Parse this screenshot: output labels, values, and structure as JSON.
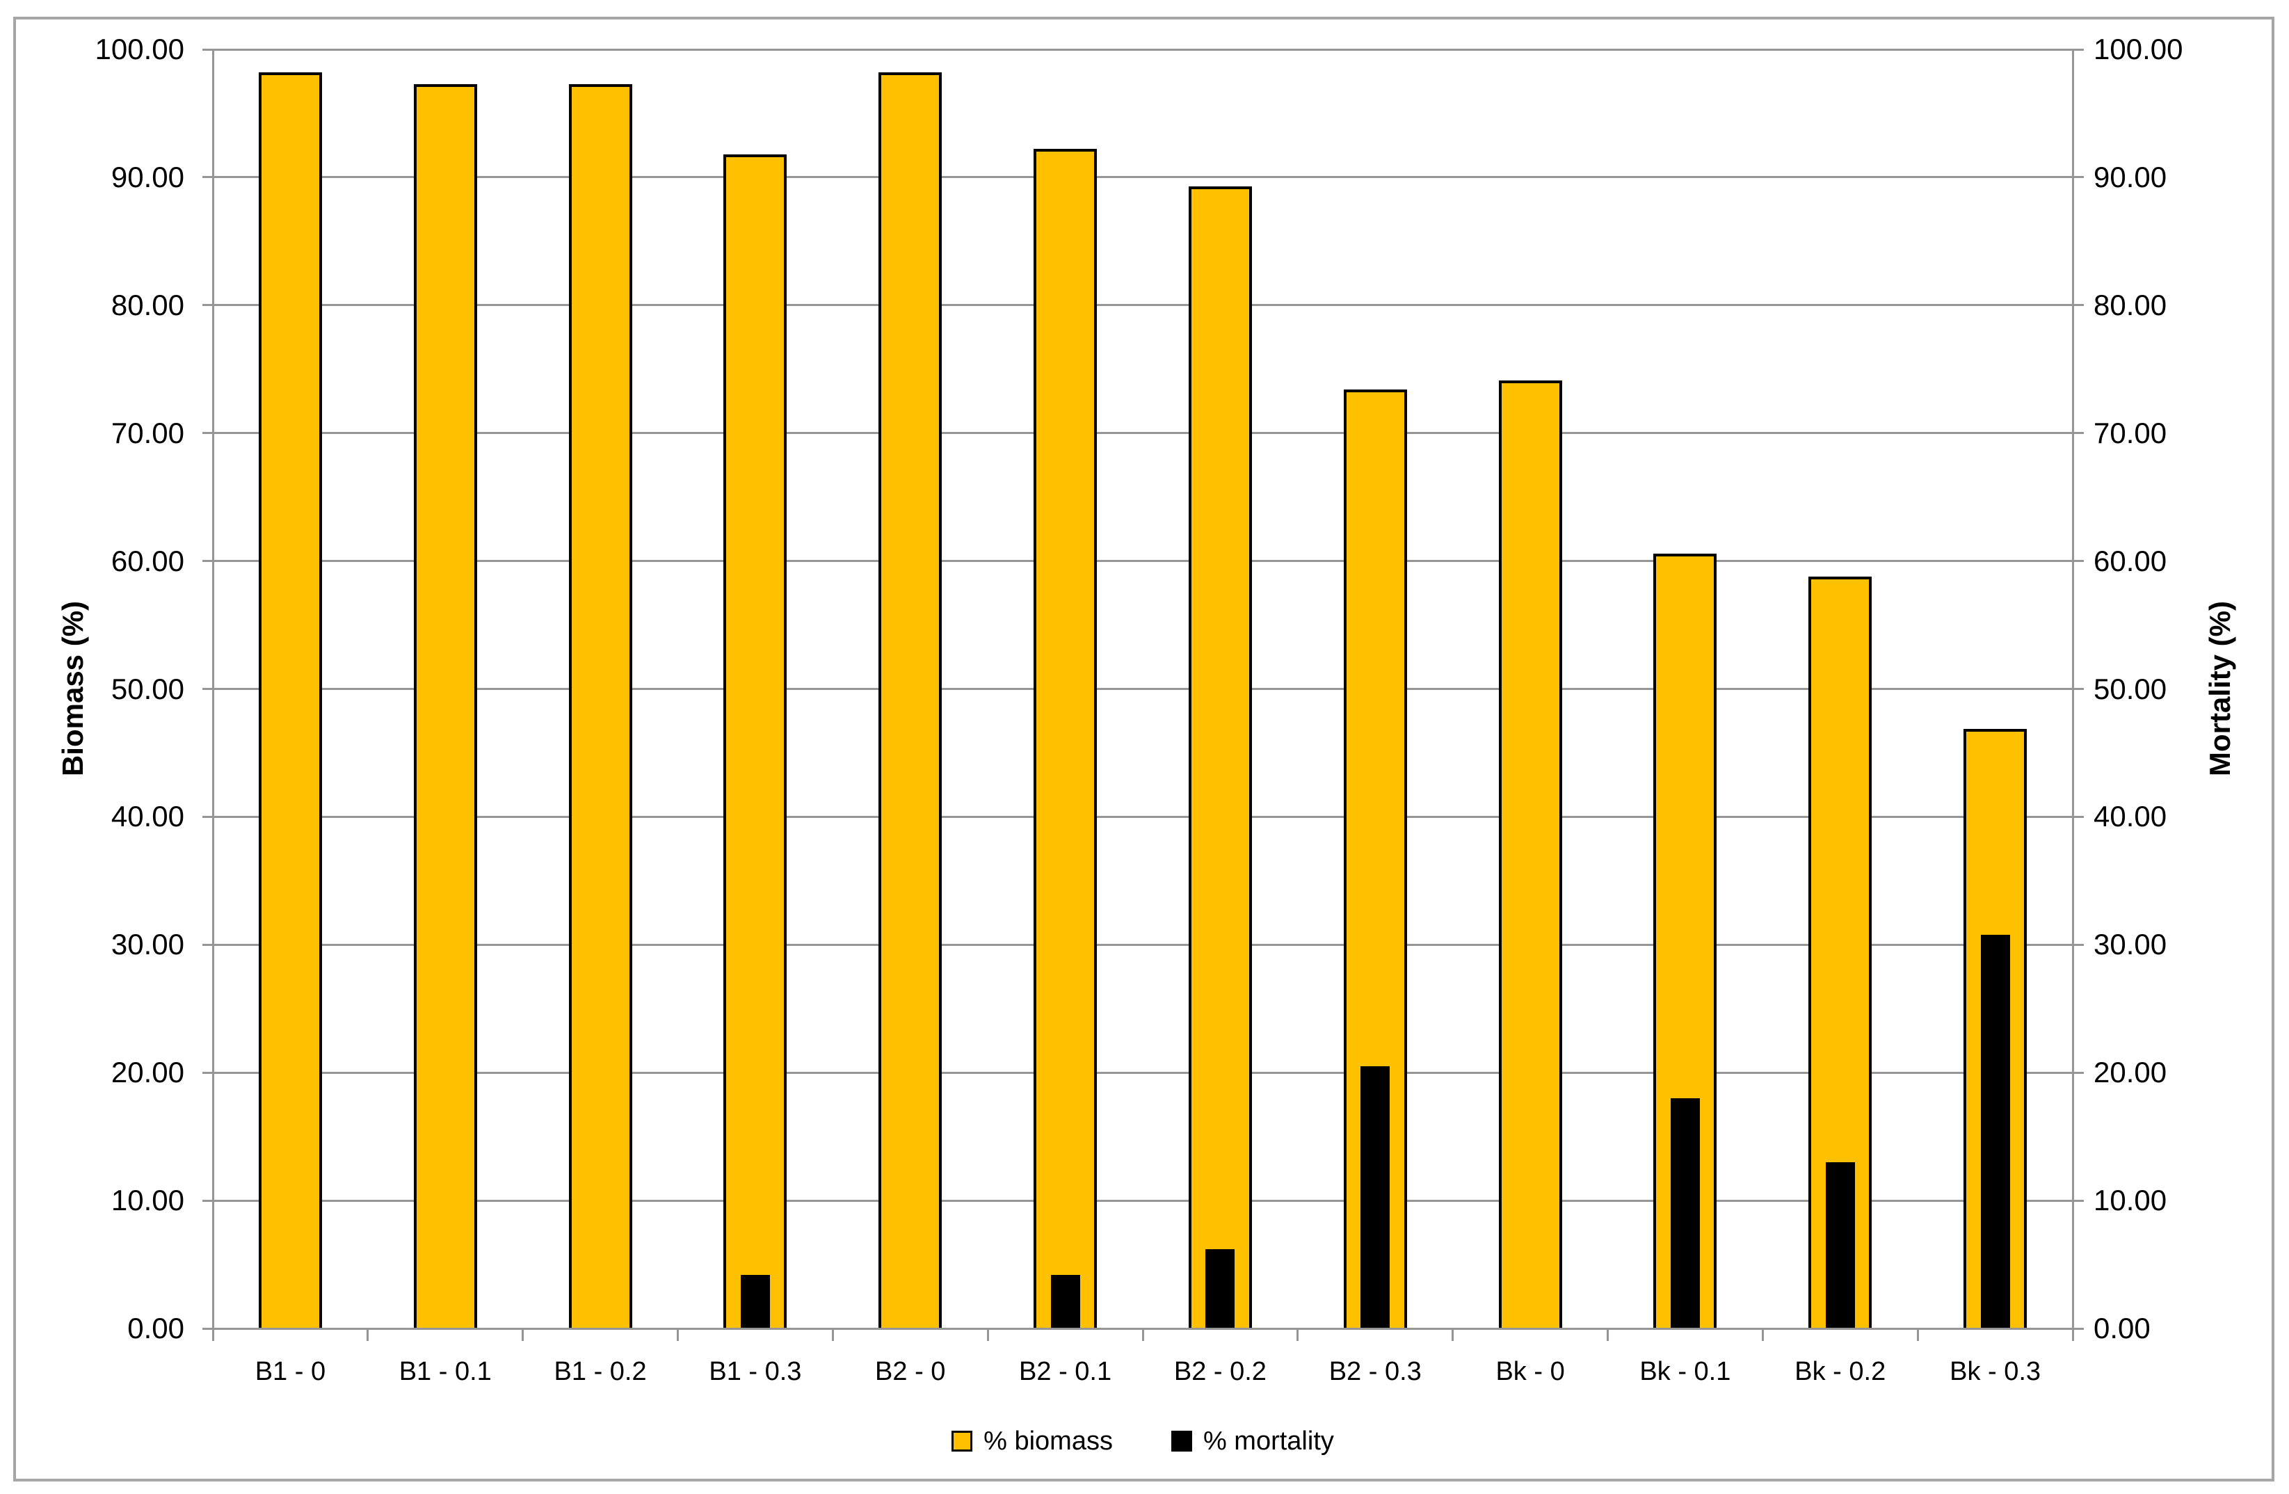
{
  "chart_data": {
    "type": "bar",
    "title": "",
    "categories": [
      "B1 - 0",
      "B1 - 0.1",
      "B1 - 0.2",
      "B1 - 0.3",
      "B2 - 0",
      "B2 - 0.1",
      "B2 - 0.2",
      "B2 - 0.3",
      "Bk - 0",
      "Bk - 0.1",
      "Bk - 0.2",
      "Bk - 0.3"
    ],
    "series": [
      {
        "name": "% biomass",
        "axis": "left",
        "color": "#FFC000",
        "border_color": "#000000",
        "values": [
          98.2,
          97.3,
          97.3,
          91.8,
          98.2,
          92.2,
          89.3,
          73.4,
          74.1,
          60.6,
          58.8,
          46.9
        ]
      },
      {
        "name": "% mortality",
        "axis": "right",
        "color": "#000000",
        "values": [
          0,
          0,
          0,
          4.2,
          0,
          4.2,
          6.2,
          20.5,
          0,
          18.0,
          13.0,
          30.8
        ]
      }
    ],
    "left_axis": {
      "title": "Biomass (%)",
      "min": 0,
      "max": 100,
      "step": 10,
      "tick_labels": [
        "0.00",
        "10.00",
        "20.00",
        "30.00",
        "40.00",
        "50.00",
        "60.00",
        "70.00",
        "80.00",
        "90.00",
        "100.00"
      ]
    },
    "right_axis": {
      "title": "Mortality (%)",
      "min": 0,
      "max": 100,
      "step": 10,
      "tick_labels": [
        "0.00",
        "10.00",
        "20.00",
        "30.00",
        "40.00",
        "50.00",
        "60.00",
        "70.00",
        "80.00",
        "90.00",
        "100.00"
      ]
    },
    "grid": true,
    "legend_position": "bottom",
    "colors": {
      "gridline": "#969696",
      "axis_line": "#969696",
      "frame_border": "#a6a6a6",
      "text": "#000000"
    }
  },
  "legend": {
    "items": [
      {
        "label": "% biomass",
        "color": "#FFC000",
        "border": "#000000"
      },
      {
        "label": "% mortality",
        "color": "#000000",
        "border": "#000000"
      }
    ]
  }
}
